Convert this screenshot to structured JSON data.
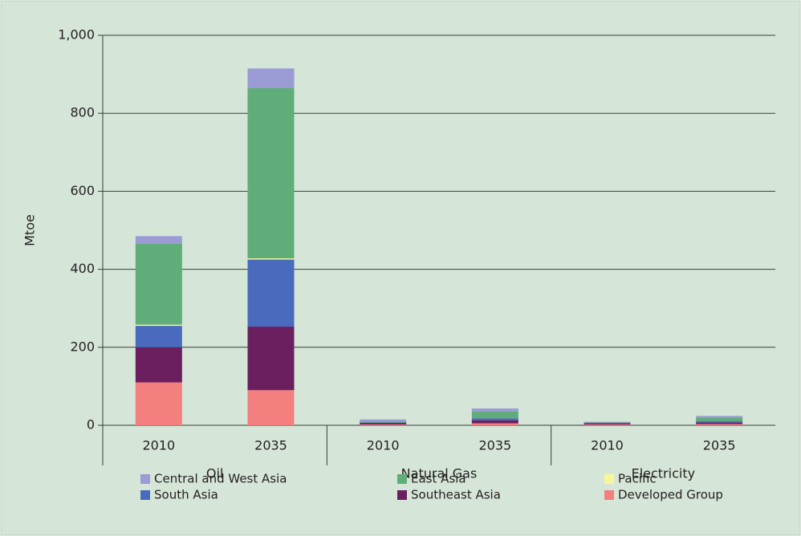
{
  "chart_data": {
    "type": "stacked-bar",
    "ylabel": "Mtoe",
    "categories": [
      "2010",
      "2035",
      "2010",
      "2035",
      "2010",
      "2035"
    ],
    "groups": [
      "Oil",
      "Natural Gas",
      "Electricity"
    ],
    "series": [
      {
        "name": "Developed Group",
        "color": "#f47f7f",
        "values": [
          110,
          90,
          2,
          5,
          2,
          3
        ]
      },
      {
        "name": "Southeast Asia",
        "color": "#6b1f5f",
        "values": [
          90,
          163,
          4,
          8,
          3,
          4
        ]
      },
      {
        "name": "South Asia",
        "color": "#4a6bbd",
        "values": [
          55,
          172,
          1,
          5,
          1,
          4
        ]
      },
      {
        "name": "Pacific",
        "color": "#f7f79a",
        "values": [
          3,
          3,
          0,
          0,
          0,
          0
        ]
      },
      {
        "name": "East Asia",
        "color": "#5fad78",
        "values": [
          207,
          437,
          3,
          17,
          1,
          9
        ]
      },
      {
        "name": "Central and West Asia",
        "color": "#9b9bd6",
        "values": [
          20,
          50,
          5,
          8,
          2,
          4
        ]
      }
    ],
    "ylim": [
      0,
      1000
    ],
    "yticks": [
      0,
      200,
      400,
      600,
      800,
      {
        "value": 1000,
        "label": "1,000"
      }
    ],
    "grid": true
  }
}
